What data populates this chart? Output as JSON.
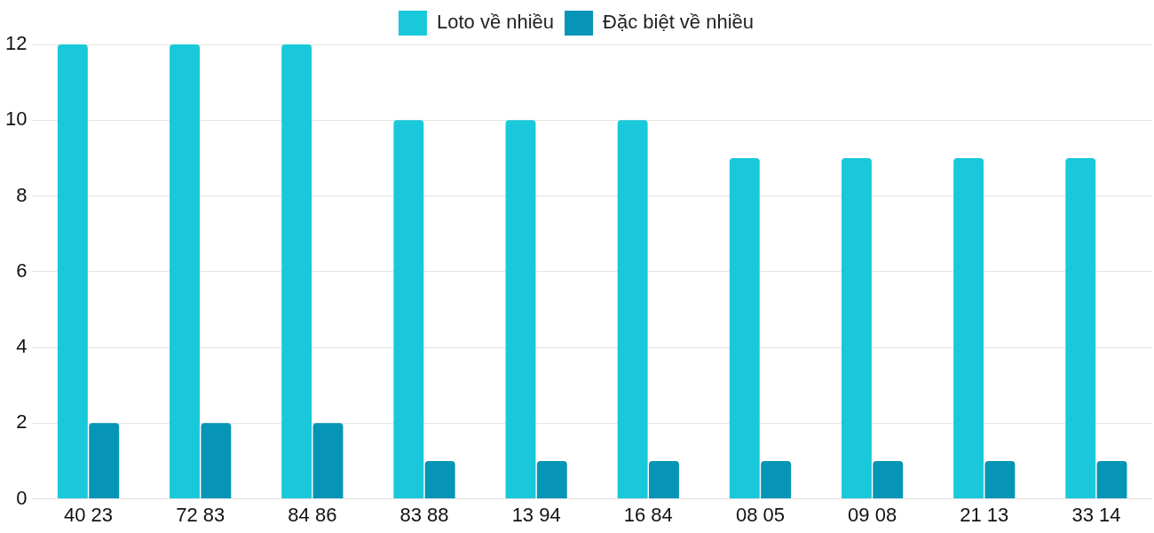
{
  "chart_data": {
    "type": "bar",
    "categories": [
      "40 23",
      "72 83",
      "84 86",
      "83 88",
      "13 94",
      "16 84",
      "08 05",
      "09 08",
      "21 13",
      "33 14"
    ],
    "series": [
      {
        "name": "Loto về nhiều",
        "color": "#1ac8db",
        "values": [
          12,
          12,
          12,
          10,
          10,
          10,
          9,
          9,
          9,
          9
        ]
      },
      {
        "name": "Đặc biệt về nhiều",
        "color": "#0795b7",
        "values": [
          2,
          2,
          2,
          1,
          1,
          1,
          1,
          1,
          1,
          1
        ]
      }
    ],
    "ylim": [
      0,
      12
    ],
    "yticks": [
      0,
      2,
      4,
      6,
      8,
      10,
      12
    ],
    "grid": "y",
    "legend": "top"
  }
}
